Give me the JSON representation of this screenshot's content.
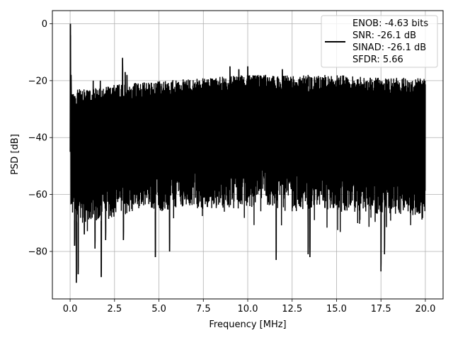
{
  "chart_data": {
    "type": "line",
    "title": "",
    "xlabel": "Frequency [MHz]",
    "ylabel": "PSD [dB]",
    "xlim": [
      -0.999,
      20.999
    ],
    "ylim": [
      -96.68,
      4.6
    ],
    "grid": true,
    "legend_position": "top-right",
    "xticks": [
      0.0,
      2.5,
      5.0,
      7.5,
      10.0,
      12.5,
      15.0,
      17.5,
      20.0
    ],
    "xtick_labels": [
      "0.0",
      "2.5",
      "5.0",
      "7.5",
      "10.0",
      "12.5",
      "15.0",
      "17.5",
      "20.0"
    ],
    "yticks": [
      0,
      -20,
      -40,
      -60,
      -80
    ],
    "ytick_labels": [
      "0",
      "−20",
      "−40",
      "−60",
      "−80"
    ],
    "legend": {
      "lines": [
        "ENOB: -4.63 bits",
        "SNR: -26.1 dB",
        "SINAD: -26.1 dB",
        "SFDR: 5.66"
      ],
      "line_color": "#000000"
    },
    "series": [
      {
        "color": "#000000",
        "noise_floor": [
          {
            "x": 0.0,
            "top": -28,
            "bottom": -68
          },
          {
            "x": 0.5,
            "top": -27,
            "bottom": -70
          },
          {
            "x": 1.0,
            "top": -27,
            "bottom": -70
          },
          {
            "x": 2.0,
            "top": -26,
            "bottom": -69
          },
          {
            "x": 3.0,
            "top": -25,
            "bottom": -67
          },
          {
            "x": 5.0,
            "top": -24,
            "bottom": -66
          },
          {
            "x": 7.5,
            "top": -23,
            "bottom": -65
          },
          {
            "x": 10.0,
            "top": -22,
            "bottom": -65
          },
          {
            "x": 12.5,
            "top": -22,
            "bottom": -65
          },
          {
            "x": 15.0,
            "top": -22,
            "bottom": -66
          },
          {
            "x": 17.5,
            "top": -23,
            "bottom": -67
          },
          {
            "x": 20.0,
            "top": -23,
            "bottom": -68
          }
        ],
        "peaks": [
          {
            "x": 0.02,
            "y": 0.0
          },
          {
            "x": 0.05,
            "y": -18
          },
          {
            "x": 1.3,
            "y": -20
          },
          {
            "x": 1.7,
            "y": -20
          },
          {
            "x": 2.95,
            "y": -12
          },
          {
            "x": 3.1,
            "y": -17
          },
          {
            "x": 3.2,
            "y": -18
          },
          {
            "x": 4.9,
            "y": -21
          },
          {
            "x": 9.0,
            "y": -15
          },
          {
            "x": 9.5,
            "y": -16
          },
          {
            "x": 10.0,
            "y": -15
          },
          {
            "x": 11.0,
            "y": -18
          },
          {
            "x": 11.95,
            "y": -16
          },
          {
            "x": 13.4,
            "y": -18
          },
          {
            "x": 14.0,
            "y": -19
          },
          {
            "x": 16.9,
            "y": -19
          }
        ],
        "dips": [
          {
            "x": 0.35,
            "y": -91
          },
          {
            "x": 0.45,
            "y": -88
          },
          {
            "x": 0.25,
            "y": -78
          },
          {
            "x": 0.8,
            "y": -74
          },
          {
            "x": 1.4,
            "y": -79
          },
          {
            "x": 1.75,
            "y": -89
          },
          {
            "x": 2.0,
            "y": -76
          },
          {
            "x": 3.0,
            "y": -76
          },
          {
            "x": 4.8,
            "y": -82
          },
          {
            "x": 5.6,
            "y": -80
          },
          {
            "x": 11.6,
            "y": -83
          },
          {
            "x": 13.4,
            "y": -81
          },
          {
            "x": 13.5,
            "y": -82
          },
          {
            "x": 17.5,
            "y": -87
          },
          {
            "x": 17.7,
            "y": -81
          }
        ]
      }
    ]
  }
}
